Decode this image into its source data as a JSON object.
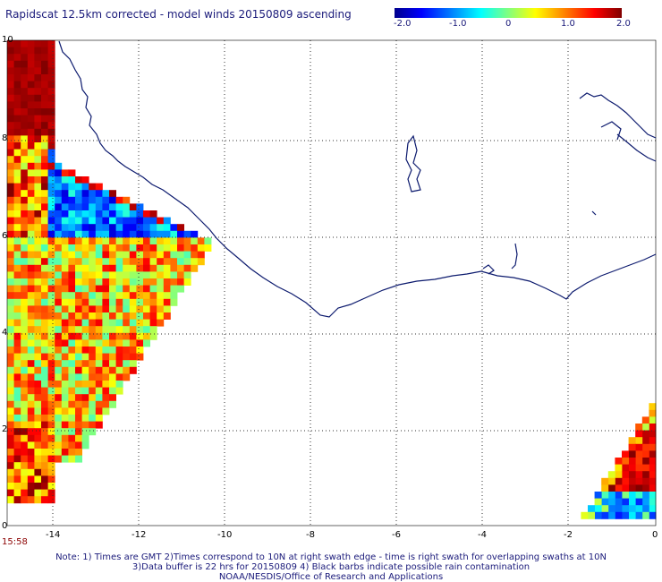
{
  "title": "Rapidscat 12.5km corrected - model winds 20150809 ascending",
  "colorbar": {
    "ticks": [
      "-2.0",
      "-1.0",
      "0",
      "1.0",
      "2.0"
    ]
  },
  "axes": {
    "x_ticks": [
      "-14",
      "-12",
      "-10",
      "-8",
      "-6",
      "-4",
      "-2",
      "0"
    ],
    "y_ticks": [
      "10",
      "8",
      "6",
      "4",
      "2",
      "0"
    ]
  },
  "time_label": "15:58",
  "notes": {
    "line1": "Note: 1) Times are GMT 2)Times correspond to 10N at right swath edge - time is right swath for overlapping swaths at 10N",
    "line2": "3)Data buffer is 22 hrs for 20150809 4) Black barbs indicate possible rain contamination",
    "line3": "NOAA/NESDIS/Office of Research and Applications"
  },
  "colors": {
    "coastline": "#0c1a6e",
    "grid": "#333333"
  }
}
